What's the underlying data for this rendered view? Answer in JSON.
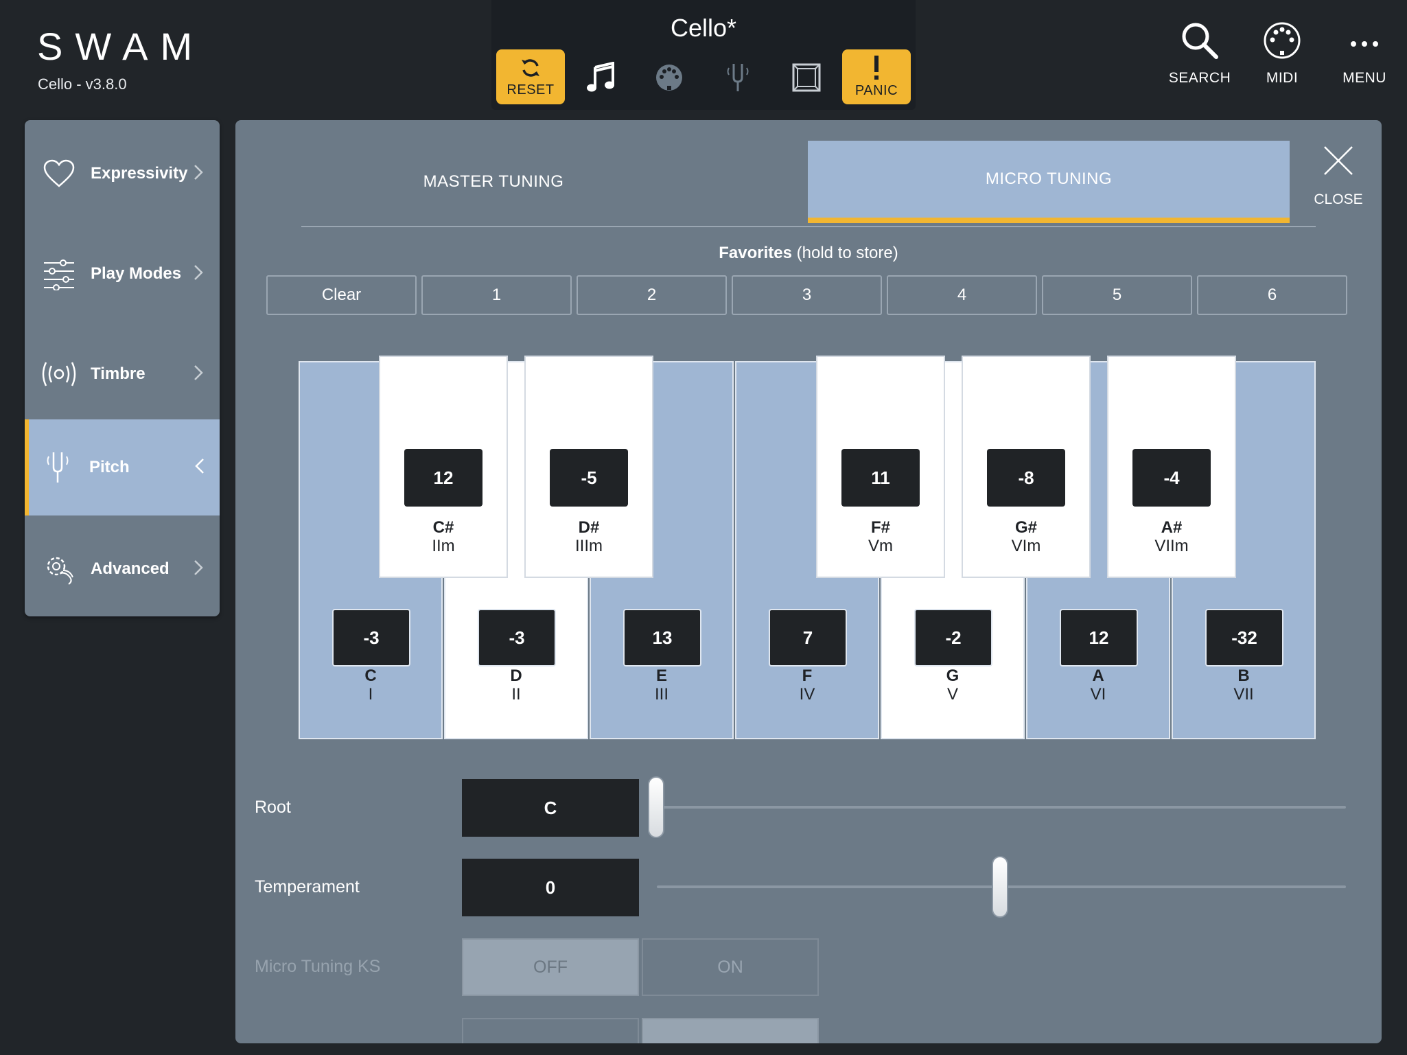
{
  "app": {
    "logo": "SWAM",
    "version": "Cello - v3.8.0",
    "preset_title": "Cello*"
  },
  "header": {
    "reset_label": "RESET",
    "panic_label": "PANIC",
    "search_label": "SEARCH",
    "midi_label": "MIDI",
    "menu_label": "MENU"
  },
  "sidebar": {
    "items": [
      {
        "label": "Expressivity",
        "icon": "heart-icon"
      },
      {
        "label": "Play Modes",
        "icon": "sliders-icon"
      },
      {
        "label": "Timbre",
        "icon": "timbre-icon"
      },
      {
        "label": "Pitch",
        "icon": "tuning-fork-icon",
        "active": true
      },
      {
        "label": "Advanced",
        "icon": "advanced-gear-icon"
      }
    ]
  },
  "tabs": {
    "master": "MASTER TUNING",
    "micro": "MICRO TUNING",
    "close": "CLOSE"
  },
  "favorites": {
    "title_bold": "Favorites",
    "title_rest": " (hold to store)",
    "buttons": [
      "Clear",
      "1",
      "2",
      "3",
      "4",
      "5",
      "6"
    ]
  },
  "keyboard": {
    "white": [
      {
        "note": "C",
        "degree": "I",
        "value": "-3"
      },
      {
        "note": "D",
        "degree": "II",
        "value": "-3"
      },
      {
        "note": "E",
        "degree": "III",
        "value": "13"
      },
      {
        "note": "F",
        "degree": "IV",
        "value": "7"
      },
      {
        "note": "G",
        "degree": "V",
        "value": "-2"
      },
      {
        "note": "A",
        "degree": "VI",
        "value": "12"
      },
      {
        "note": "B",
        "degree": "VII",
        "value": "-32"
      }
    ],
    "black": [
      {
        "note": "C#",
        "degree": "IIm",
        "value": "12"
      },
      {
        "note": "D#",
        "degree": "IIIm",
        "value": "-5"
      },
      {
        "note": "F#",
        "degree": "Vm",
        "value": "11"
      },
      {
        "note": "G#",
        "degree": "VIm",
        "value": "-8"
      },
      {
        "note": "A#",
        "degree": "VIIm",
        "value": "-4"
      }
    ]
  },
  "params": {
    "root": {
      "label": "Root",
      "value": "C"
    },
    "temperament": {
      "label": "Temperament",
      "value": "0"
    },
    "micro_ks": {
      "label": "Micro Tuning KS",
      "off": "OFF",
      "on": "ON"
    }
  },
  "colors": {
    "accent": "#f2b631",
    "panel": "#6c7a87",
    "active_blue": "#9fb6d3",
    "background": "#212529"
  }
}
